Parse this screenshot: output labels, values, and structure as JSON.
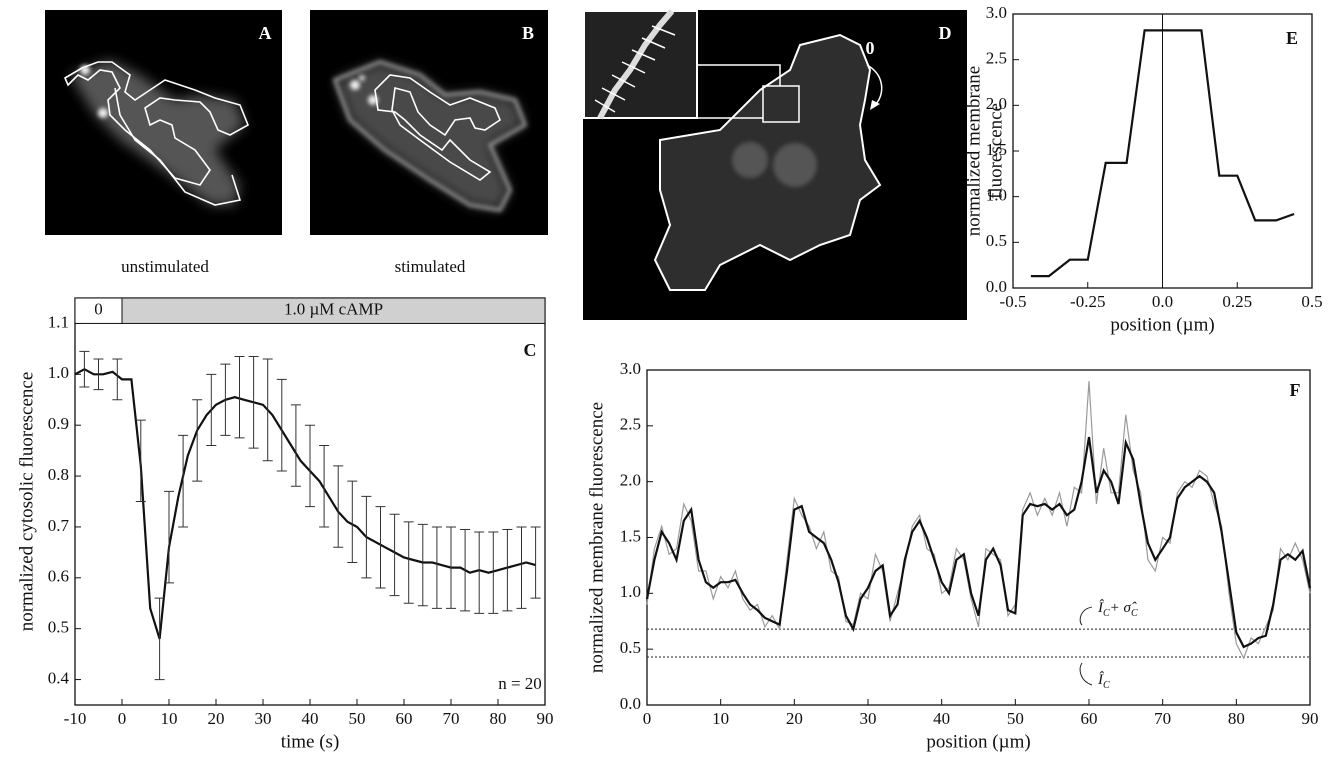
{
  "panels": {
    "a": {
      "label": "A",
      "caption": "unstimulated"
    },
    "b": {
      "label": "B",
      "caption": "stimulated"
    },
    "d": {
      "label": "D",
      "start_label": "0"
    }
  },
  "chart_data": [
    {
      "type": "line",
      "panel_label": "C",
      "xlabel": "time (s)",
      "ylabel": "normalized  cytosolic fluorescence",
      "xlim": [
        -10,
        90
      ],
      "ylim": [
        0.35,
        1.15
      ],
      "xticks": [
        -10,
        0,
        10,
        20,
        30,
        40,
        50,
        60,
        70,
        80,
        90
      ],
      "yticks": [
        0.4,
        0.5,
        0.6,
        0.7,
        0.8,
        0.9,
        {
          "value": 1.0,
          "label": "1.0"
        },
        1.1
      ],
      "annotation": "n = 20",
      "stimulus_bar": [
        {
          "label": "0",
          "range": [
            -10,
            0
          ]
        },
        {
          "label": "1.0 µM cAMP",
          "range": [
            0,
            90
          ]
        }
      ],
      "series": [
        {
          "color": "#111111",
          "x": [
            -10,
            -8,
            -6,
            -4,
            -2,
            0,
            2,
            4,
            6,
            8,
            10,
            12,
            14,
            16,
            18,
            20,
            22,
            24,
            26,
            28,
            30,
            32,
            34,
            36,
            38,
            40,
            42,
            44,
            46,
            48,
            50,
            52,
            54,
            56,
            58,
            60,
            62,
            64,
            66,
            68,
            70,
            72,
            74,
            76,
            78,
            80,
            82,
            84,
            86,
            88
          ],
          "values": [
            1.0,
            1.01,
            1.0,
            1.0,
            1.005,
            0.99,
            0.99,
            0.82,
            0.54,
            0.48,
            0.66,
            0.76,
            0.84,
            0.89,
            0.92,
            0.94,
            0.95,
            0.955,
            0.95,
            0.945,
            0.94,
            0.92,
            0.89,
            0.86,
            0.83,
            0.81,
            0.79,
            0.76,
            0.73,
            0.71,
            0.7,
            0.68,
            0.67,
            0.66,
            0.65,
            0.64,
            0.635,
            0.63,
            0.63,
            0.625,
            0.62,
            0.62,
            0.61,
            0.615,
            0.61,
            0.615,
            0.62,
            0.625,
            0.63,
            0.625
          ]
        },
        {
          "color": "#333333",
          "style": "errorbar",
          "x": [
            -8,
            -5,
            -1,
            4,
            8,
            10,
            13,
            16,
            19,
            22,
            25,
            28,
            31,
            34,
            37,
            40,
            43,
            46,
            49,
            52,
            55,
            58,
            61,
            64,
            67,
            70,
            73,
            76,
            79,
            82,
            85,
            88
          ],
          "values": [
            1.01,
            1.0,
            0.99,
            0.83,
            0.48,
            0.68,
            0.79,
            0.87,
            0.93,
            0.95,
            0.955,
            0.945,
            0.93,
            0.9,
            0.86,
            0.82,
            0.78,
            0.74,
            0.71,
            0.68,
            0.66,
            0.645,
            0.63,
            0.625,
            0.62,
            0.62,
            0.615,
            0.61,
            0.61,
            0.615,
            0.62,
            0.63
          ],
          "errors": [
            0.035,
            0.03,
            0.04,
            0.08,
            0.08,
            0.09,
            0.09,
            0.08,
            0.07,
            0.07,
            0.08,
            0.09,
            0.1,
            0.09,
            0.08,
            0.08,
            0.08,
            0.08,
            0.08,
            0.08,
            0.08,
            0.08,
            0.08,
            0.08,
            0.08,
            0.08,
            0.08,
            0.08,
            0.08,
            0.08,
            0.08,
            0.07
          ]
        }
      ]
    },
    {
      "type": "line",
      "panel_label": "E",
      "xlabel": "position (µm)",
      "ylabel": [
        "normalized membrane",
        "fluorescence"
      ],
      "xlim": [
        -0.5,
        0.5
      ],
      "ylim": [
        0,
        3
      ],
      "xticks": [
        -0.5,
        -0.25,
        {
          "value": 0,
          "label": "0.0"
        },
        0.25,
        0.5
      ],
      "yticks": [
        {
          "value": 0,
          "label": "0.0"
        },
        0.5,
        {
          "value": 1,
          "label": "1.0"
        },
        1.5,
        {
          "value": 2,
          "label": "2.0"
        },
        2.5,
        {
          "value": 3,
          "label": "3.0"
        }
      ],
      "vline": 0,
      "series": [
        {
          "color": "#111111",
          "x": [
            -0.44,
            -0.38,
            -0.31,
            -0.25,
            -0.19,
            -0.12,
            -0.06,
            0.13,
            0.19,
            0.25,
            0.31,
            0.38,
            0.44
          ],
          "values": [
            0.13,
            0.13,
            0.31,
            0.31,
            1.37,
            1.37,
            2.82,
            2.82,
            1.23,
            1.23,
            0.74,
            0.74,
            0.81
          ]
        }
      ]
    },
    {
      "type": "line",
      "panel_label": "F",
      "xlabel": "position (µm)",
      "ylabel": "normalized membrane fluorescence",
      "xlim": [
        0,
        90
      ],
      "ylim": [
        0,
        3
      ],
      "xticks": [
        0,
        10,
        20,
        30,
        40,
        50,
        60,
        70,
        80,
        90
      ],
      "yticks": [
        {
          "value": 0,
          "label": "0.0"
        },
        0.5,
        {
          "value": 1,
          "label": "1.0"
        },
        1.5,
        {
          "value": 2,
          "label": "2.0"
        },
        2.5,
        {
          "value": 3,
          "label": "3.0"
        }
      ],
      "hlines": [
        {
          "value": 0.68,
          "label": [
            "Î",
            "C",
            "+ σ̂",
            "C"
          ]
        },
        {
          "value": 0.43,
          "label": [
            "Î",
            "C"
          ]
        }
      ],
      "x": [
        0,
        1,
        2,
        3,
        4,
        5,
        6,
        7,
        8,
        9,
        10,
        11,
        12,
        13,
        14,
        15,
        16,
        17,
        18,
        19,
        20,
        21,
        22,
        23,
        24,
        25,
        26,
        27,
        28,
        29,
        30,
        31,
        32,
        33,
        34,
        35,
        36,
        37,
        38,
        39,
        40,
        41,
        42,
        43,
        44,
        45,
        46,
        47,
        48,
        49,
        50,
        51,
        52,
        53,
        54,
        55,
        56,
        57,
        58,
        59,
        60,
        61,
        62,
        63,
        64,
        65,
        66,
        67,
        68,
        69,
        70,
        71,
        72,
        73,
        74,
        75,
        76,
        77,
        78,
        79,
        80,
        81,
        82,
        83,
        84,
        85,
        86,
        87,
        88,
        89,
        90
      ],
      "series": [
        {
          "color": "#9a9a9a",
          "values": [
            0.9,
            1.4,
            1.6,
            1.35,
            1.4,
            1.8,
            1.65,
            1.2,
            1.2,
            0.95,
            1.15,
            1.05,
            1.2,
            0.95,
            0.85,
            0.9,
            0.7,
            0.8,
            0.68,
            1.3,
            1.85,
            1.7,
            1.6,
            1.4,
            1.55,
            1.2,
            1.15,
            0.75,
            0.72,
            1.0,
            0.95,
            1.35,
            1.2,
            0.75,
            1.0,
            1.25,
            1.6,
            1.7,
            1.4,
            1.35,
            1.0,
            1.05,
            1.4,
            1.3,
            0.95,
            0.7,
            1.4,
            1.35,
            1.3,
            0.8,
            0.9,
            1.75,
            1.9,
            1.7,
            1.85,
            1.7,
            1.9,
            1.6,
            1.95,
            1.9,
            2.9,
            1.8,
            2.3,
            1.9,
            1.9,
            2.6,
            2.1,
            1.9,
            1.3,
            1.2,
            1.5,
            1.45,
            1.9,
            2.0,
            1.95,
            2.1,
            2.05,
            1.8,
            1.6,
            1.0,
            0.55,
            0.42,
            0.6,
            0.55,
            0.7,
            0.85,
            1.4,
            1.3,
            1.45,
            1.3,
            1.0
          ]
        },
        {
          "color": "#111111",
          "values": [
            0.95,
            1.3,
            1.55,
            1.45,
            1.3,
            1.65,
            1.75,
            1.3,
            1.1,
            1.05,
            1.1,
            1.1,
            1.12,
            1.0,
            0.9,
            0.85,
            0.78,
            0.75,
            0.72,
            1.2,
            1.75,
            1.78,
            1.55,
            1.5,
            1.45,
            1.3,
            1.1,
            0.8,
            0.68,
            0.95,
            1.05,
            1.2,
            1.25,
            0.8,
            0.9,
            1.3,
            1.55,
            1.65,
            1.5,
            1.3,
            1.1,
            1.0,
            1.3,
            1.35,
            1.0,
            0.8,
            1.3,
            1.4,
            1.25,
            0.85,
            0.82,
            1.7,
            1.8,
            1.78,
            1.8,
            1.75,
            1.8,
            1.7,
            1.75,
            2.0,
            2.4,
            1.9,
            2.1,
            2.0,
            1.8,
            2.35,
            2.2,
            1.8,
            1.45,
            1.3,
            1.4,
            1.5,
            1.85,
            1.95,
            2.0,
            2.05,
            2.0,
            1.9,
            1.55,
            1.1,
            0.65,
            0.52,
            0.55,
            0.6,
            0.62,
            0.9,
            1.3,
            1.35,
            1.3,
            1.38,
            1.05
          ]
        }
      ]
    }
  ]
}
